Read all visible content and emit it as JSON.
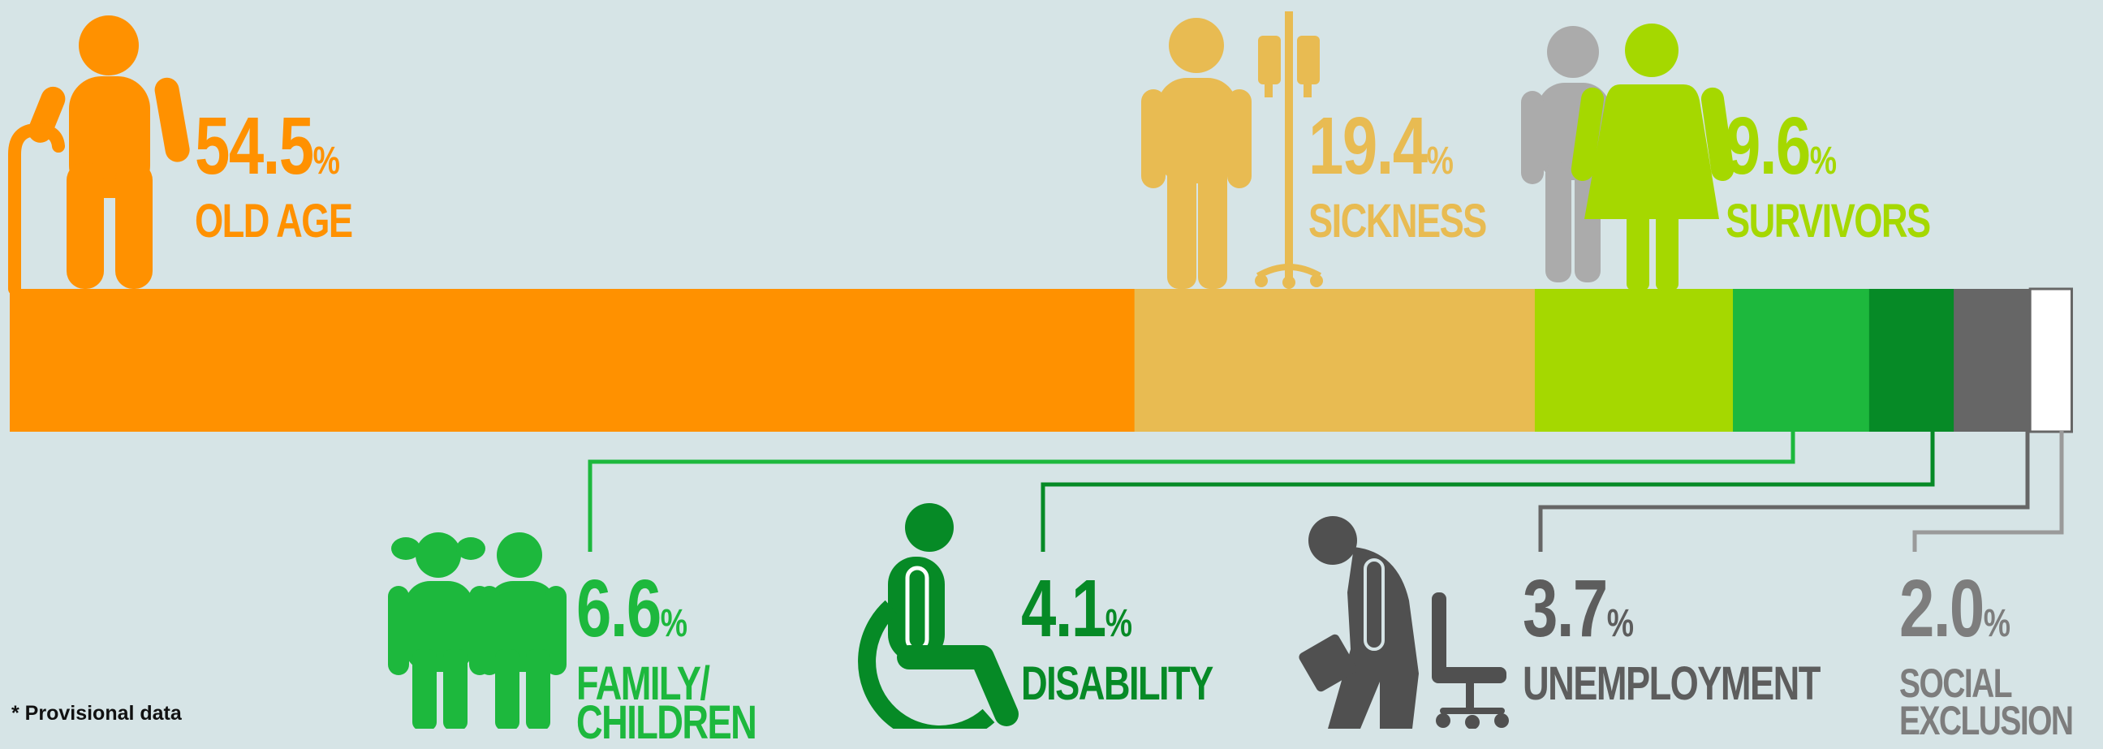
{
  "colors": {
    "background": "#d6e4e6",
    "old_age": "#ff9100",
    "sickness": "#e8bb52",
    "survivors": "#a5d800",
    "family": "#1db83d",
    "disability": "#068a26",
    "unemployment": "#666666",
    "social_exclusion": "#ffffff",
    "grey_text": "#7d7d7d",
    "dark_text": "#5d5d5d"
  },
  "chart_data": {
    "type": "bar",
    "orientation": "horizontal-stacked",
    "categories": [
      "OLD AGE",
      "SICKNESS",
      "SURVIVORS",
      "FAMILY/ CHILDREN",
      "DISABILITY",
      "UNEMPLOYMENT",
      "SOCIAL EXCLUSION"
    ],
    "values": [
      54.5,
      19.4,
      9.6,
      6.6,
      4.1,
      3.7,
      2.0
    ],
    "unit": "%",
    "title": "",
    "xlabel": "",
    "ylabel": ""
  },
  "labels": {
    "old_age": {
      "value": "54.5",
      "sign": "%",
      "name": "OLD AGE"
    },
    "sickness": {
      "value": "19.4",
      "sign": "%",
      "name": "SICKNESS"
    },
    "survivors": {
      "value": "9.6",
      "sign": "%",
      "name": "SURVIVORS"
    },
    "family": {
      "value": "6.6",
      "sign": "%",
      "name_line1": "FAMILY/",
      "name_line2": "CHILDREN"
    },
    "disability": {
      "value": "4.1",
      "sign": "%",
      "name": "DISABILITY"
    },
    "unemployment": {
      "value": "3.7",
      "sign": "%",
      "name": "UNEMPLOYMENT"
    },
    "social_exclusion": {
      "value": "2.0",
      "sign": "%",
      "name_line1": "SOCIAL",
      "name_line2": "EXCLUSION"
    }
  },
  "footnote": "* Provisional data",
  "icons": [
    "elderly-person-with-cane-icon",
    "patient-with-iv-drip-icon",
    "survivor-couple-icon",
    "children-icon",
    "wheelchair-icon",
    "unemployed-person-with-briefcase-icon",
    "office-chair-icon"
  ]
}
